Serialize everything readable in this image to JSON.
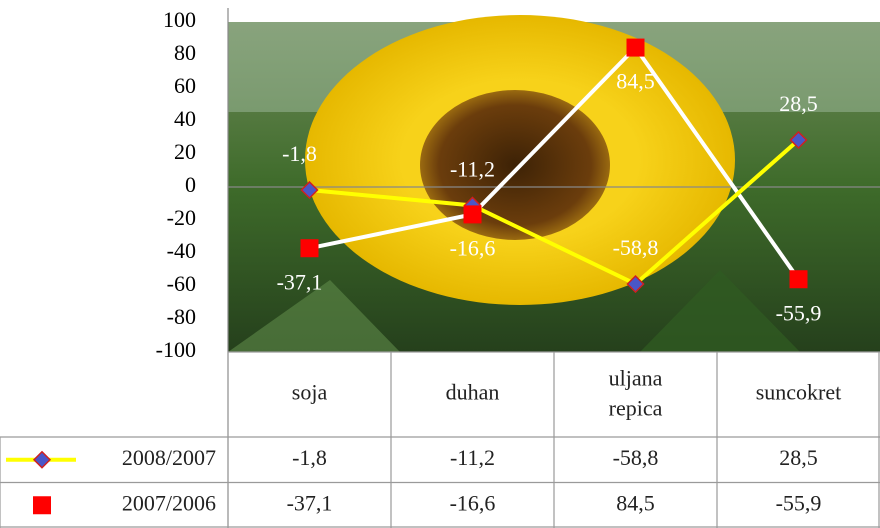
{
  "chart_data": {
    "type": "line",
    "categories": [
      "soja",
      "duhan",
      "uljana repica",
      "suncokret"
    ],
    "series": [
      {
        "name": "2008/2007",
        "color": "#ffff00",
        "marker": "diamond",
        "marker_color": "#4a56c8",
        "values": [
          -1.8,
          -11.2,
          -58.8,
          28.5
        ],
        "value_labels": [
          "-1,8",
          "-11,2",
          "-58,8",
          "28,5"
        ]
      },
      {
        "name": "2007/2006",
        "color": "#ffffff",
        "marker": "square",
        "marker_color": "#ff0000",
        "values": [
          -37.1,
          -16.6,
          84.5,
          -55.9
        ],
        "value_labels": [
          "-37,1",
          "-16,6",
          "84,5",
          "-55,9"
        ]
      }
    ],
    "ylim": [
      -100,
      100
    ],
    "yticks": [
      -100,
      -80,
      -60,
      -40,
      -20,
      0,
      20,
      40,
      60,
      80,
      100
    ],
    "grid": false,
    "data_table": true
  }
}
